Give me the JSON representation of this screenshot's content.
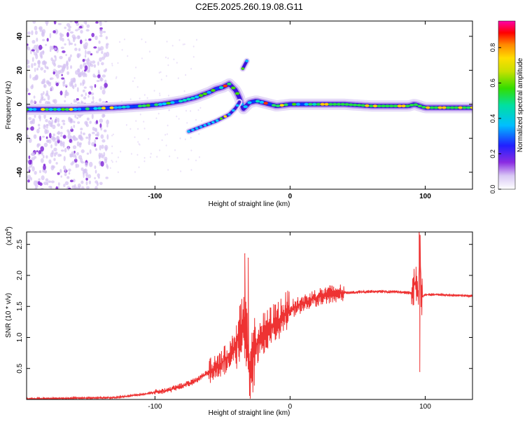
{
  "title": "C2E5.2025.260.19.08.G11",
  "colors": {
    "snr_line": "#ee3333",
    "axis": "#000000",
    "background": "#ffffff"
  },
  "colorbar": {
    "label": "Normalized spectral amplitude",
    "ticks": [
      "0.0",
      "0.2",
      "0.4",
      "0.6",
      "0.8"
    ],
    "tick_values": [
      0.0,
      0.2,
      0.4,
      0.6,
      0.8
    ],
    "range": [
      0,
      0.95
    ]
  },
  "chart_data": [
    {
      "type": "heatmap",
      "name": "spectrogram",
      "xlabel": "Height of straight line (km)",
      "ylabel": "Frequency (Hz)",
      "xlim": [
        -195,
        135
      ],
      "ylim": [
        -50,
        49
      ],
      "x_ticks": [
        -100,
        0,
        100
      ],
      "x_tick_labels": [
        "-100",
        "0",
        "100"
      ],
      "y_ticks": [
        -40,
        -20,
        0,
        20,
        40
      ],
      "y_tick_labels": [
        "-40",
        "-20",
        "0",
        "20",
        "40"
      ],
      "ridges": [
        {
          "name": "main-ridge",
          "x": [
            -195,
            -160,
            -130,
            -110,
            -95,
            -80,
            -70,
            -60,
            -55,
            -50,
            -45,
            -40,
            -37,
            -35,
            -30,
            -25,
            -20,
            -15,
            -10,
            0,
            20,
            40,
            60,
            80,
            88,
            92,
            100,
            120,
            135
          ],
          "y": [
            -3,
            -3,
            -2,
            -1,
            0,
            2,
            4,
            7,
            9,
            10,
            12,
            8,
            3,
            -3,
            1,
            2,
            1,
            0,
            -1,
            0,
            0,
            0,
            -1,
            -1,
            -1,
            0,
            -2,
            -2,
            -2
          ]
        },
        {
          "name": "lower-branch",
          "x": [
            -75,
            -65,
            -55,
            -45,
            -40,
            -37
          ],
          "y": [
            -16,
            -13,
            -10,
            -6,
            -2,
            2
          ]
        },
        {
          "name": "upper-burst",
          "x": [
            -35,
            -33,
            -31
          ],
          "y": [
            21,
            24,
            27
          ]
        }
      ]
    },
    {
      "type": "line",
      "name": "snr",
      "xlabel": "Height of straight line (km)",
      "ylabel": "SNR (10 * v/v)",
      "exponent_label": "(x10",
      "exponent_power": "4",
      "exponent_close": ")",
      "xlim": [
        -195,
        135
      ],
      "ylim": [
        0,
        2.7
      ],
      "x_ticks": [
        -100,
        0,
        100
      ],
      "x_tick_labels": [
        "-100",
        "0",
        "100"
      ],
      "y_ticks": [
        0.5,
        1.0,
        1.5,
        2.0,
        2.5
      ],
      "y_tick_labels": [
        "0.5",
        "1.0",
        "1.5",
        "2.0",
        "2.5"
      ],
      "series": [
        {
          "name": "SNR",
          "x": [
            -195,
            -160,
            -130,
            -110,
            -90,
            -80,
            -70,
            -60,
            -50,
            -45,
            -40,
            -35,
            -32,
            -30,
            -28,
            -25,
            -22,
            -20,
            -15,
            -10,
            -5,
            0,
            10,
            20,
            30,
            40,
            50,
            60,
            70,
            80,
            90,
            93,
            95,
            96,
            97,
            100,
            110,
            120,
            135
          ],
          "y": [
            0.01,
            0.02,
            0.03,
            0.08,
            0.15,
            0.22,
            0.3,
            0.45,
            0.6,
            0.7,
            0.9,
            1.2,
            1.0,
            0.35,
            0.6,
            0.9,
            1.0,
            1.05,
            1.15,
            1.25,
            1.35,
            1.45,
            1.55,
            1.65,
            1.7,
            1.72,
            1.73,
            1.74,
            1.74,
            1.73,
            1.72,
            1.9,
            1.6,
            2.7,
            1.65,
            1.69,
            1.69,
            1.68,
            1.67
          ],
          "extremes": [
            {
              "x": -33.5,
              "y": 2.35
            },
            {
              "x": -31,
              "y": 2.28
            },
            {
              "x": -29.5,
              "y": 0.02
            },
            {
              "x": 95.5,
              "y": 2.7
            },
            {
              "x": 96,
              "y": 0.45
            }
          ]
        }
      ]
    }
  ]
}
